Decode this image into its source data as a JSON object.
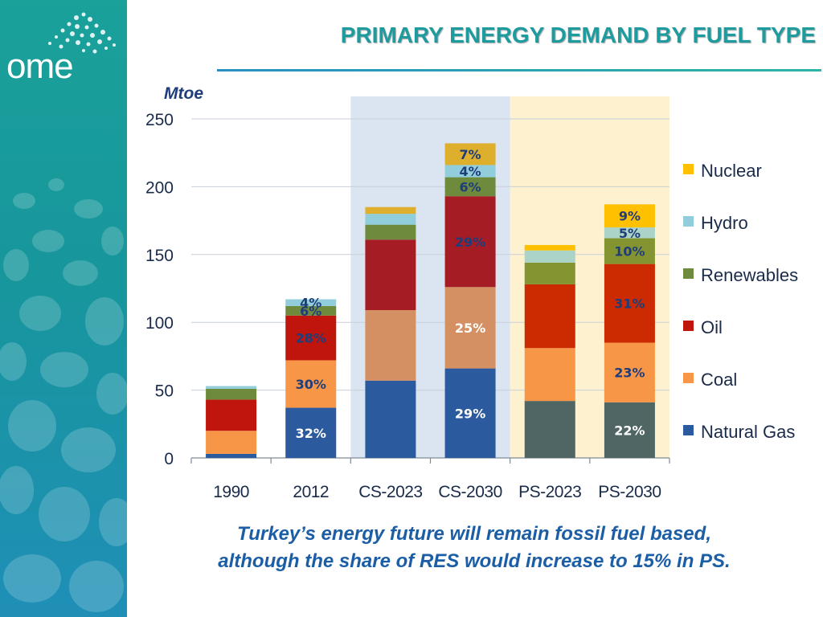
{
  "brand": {
    "logo_text": "ome"
  },
  "slide": {
    "title": "PRIMARY ENERGY DEMAND BY FUEL TYPE"
  },
  "footer": {
    "line1": "Turkey’s energy future will remain fossil fuel based,",
    "line2": "although the share of RES would increase to 15% in PS."
  },
  "colors": {
    "sidebar": "#1aa19a",
    "title": "#1e9b9e",
    "footer_text": "#1b5ea6",
    "cs_band": "#dbe5f1",
    "ps_band": "#fdf1cf",
    "label_dark": "#1f3d7a"
  },
  "chart_data": {
    "type": "bar",
    "stacked": true,
    "ylabel": "Mtoe",
    "ylim": [
      0,
      250
    ],
    "yticks": [
      0,
      50,
      100,
      150,
      200,
      250
    ],
    "grid": true,
    "legend_position": "right",
    "categories": [
      "1990",
      "2012",
      "CS-2023",
      "CS-2030",
      "PS-2023",
      "PS-2030"
    ],
    "bands": [
      {
        "from": 2,
        "to": 3,
        "color": "#dbe5f1"
      },
      {
        "from": 4,
        "to": 5,
        "color": "#fdf1cf"
      }
    ],
    "series": [
      {
        "name": "Natural Gas",
        "legend_color": "#2b5a9e",
        "colors": [
          "#2b5a9e",
          "#2b5a9e",
          "#2b5a9e",
          "#2b5a9e",
          "#4f6664",
          "#4f6664"
        ],
        "values": [
          3,
          37,
          57,
          66,
          42,
          41
        ],
        "labels": [
          "",
          "32%",
          "",
          "29%",
          "",
          "22%"
        ]
      },
      {
        "name": "Coal",
        "legend_color": "#f79646",
        "colors": [
          "#f79646",
          "#f79646",
          "#d49063",
          "#d49063",
          "#f79646",
          "#f79646"
        ],
        "values": [
          17,
          35,
          52,
          60,
          39,
          44
        ],
        "labels": [
          "",
          "30%",
          "",
          "25%",
          "",
          "23%"
        ]
      },
      {
        "name": "Oil",
        "legend_color": "#c0150c",
        "colors": [
          "#c0150c",
          "#c0150c",
          "#a51c24",
          "#a51c24",
          "#cc2a00",
          "#cc2a00"
        ],
        "values": [
          23,
          33,
          52,
          67,
          47,
          58
        ],
        "labels": [
          "",
          "28%",
          "",
          "29%",
          "",
          "31%"
        ]
      },
      {
        "name": "Renewables",
        "legend_color": "#6e8b3d",
        "colors": [
          "#6e8b3d",
          "#6e8b3d",
          "#6e8b3d",
          "#6e8b3d",
          "#849431",
          "#849431"
        ],
        "values": [
          8,
          7,
          11,
          14,
          16,
          19
        ],
        "labels": [
          "",
          "6%",
          "",
          "6%",
          "",
          "10%"
        ]
      },
      {
        "name": "Hydro",
        "legend_color": "#92cddc",
        "colors": [
          "#92cddc",
          "#92cddc",
          "#92cddc",
          "#92cddc",
          "#acd3c7",
          "#acd3c7"
        ],
        "values": [
          2,
          5,
          8,
          9,
          9,
          8
        ],
        "labels": [
          "",
          "4%",
          "",
          "4%",
          "",
          "5%"
        ]
      },
      {
        "name": "Nuclear",
        "legend_color": "#ffc000",
        "colors": [
          "#ffc000",
          "#ffc000",
          "#ddaf2d",
          "#ddaf2d",
          "#ffc000",
          "#ffc000"
        ],
        "values": [
          0,
          0,
          5,
          16,
          4,
          17
        ],
        "labels": [
          "",
          "",
          "",
          "7%",
          "",
          "9%"
        ]
      }
    ]
  }
}
